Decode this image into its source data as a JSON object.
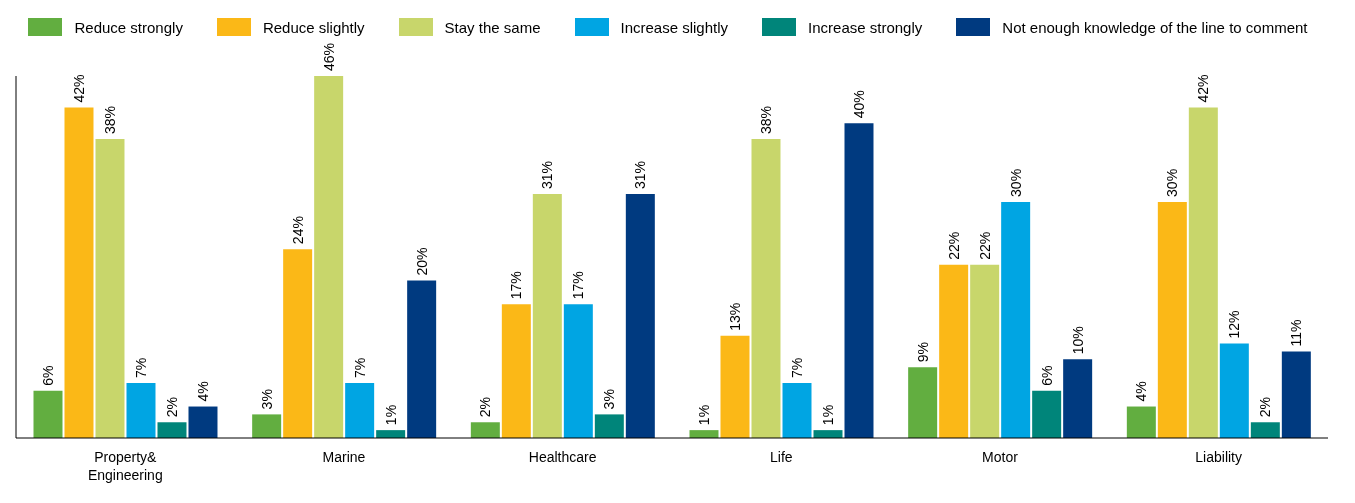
{
  "chart_data": {
    "type": "bar",
    "categories": [
      "Property& Engineering",
      "Marine",
      "Healthcare",
      "Life",
      "Motor",
      "Liability"
    ],
    "series": [
      {
        "name": "Reduce strongly",
        "color": "#62ae40",
        "values": [
          6,
          3,
          2,
          1,
          9,
          4
        ],
        "value_labels": [
          "6%",
          "3%",
          "2%",
          "1%",
          "9%",
          "4%"
        ]
      },
      {
        "name": "Reduce slightly",
        "color": "#fbb817",
        "values": [
          42,
          24,
          17,
          13,
          22,
          30
        ],
        "value_labels": [
          "42%",
          "24%",
          "17%",
          "13%",
          "22%",
          "30%"
        ]
      },
      {
        "name": "Stay the same",
        "color": "#c8d66b",
        "values": [
          38,
          46,
          31,
          38,
          22,
          42
        ],
        "value_labels": [
          "38%",
          "46%",
          "31%",
          "38%",
          "22%",
          "42%"
        ]
      },
      {
        "name": "Increase slightly",
        "color": "#00a5e3",
        "values": [
          7,
          7,
          17,
          7,
          30,
          12
        ],
        "value_labels": [
          "7%",
          "7%",
          "17%",
          "7%",
          "30%",
          "12%"
        ]
      },
      {
        "name": "Increase strongly",
        "color": "#00857a",
        "values": [
          2,
          1,
          3,
          1,
          6,
          2
        ],
        "value_labels": [
          "2%",
          "1%",
          "3%",
          "1%",
          "6%",
          "2%"
        ]
      },
      {
        "name": "Not enough knowledge of the line to comment",
        "color": "#003a80",
        "values": [
          4,
          20,
          31,
          40,
          10,
          11
        ],
        "value_labels": [
          "4%",
          "20%",
          "31%",
          "40%",
          "10%",
          "11%"
        ]
      }
    ],
    "legend": "top",
    "tick_labels": "x"
  }
}
